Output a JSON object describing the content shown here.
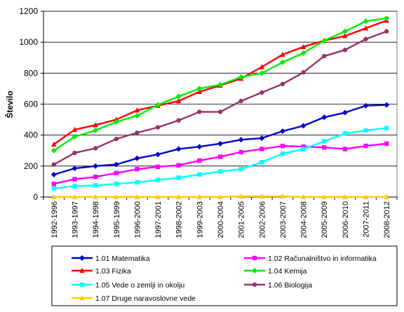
{
  "chart_data": {
    "type": "line",
    "title": "",
    "xlabel": "",
    "ylabel": "Število",
    "ylim": [
      0,
      1200
    ],
    "yticks": [
      0,
      200,
      400,
      600,
      800,
      1000,
      1200
    ],
    "grid": "horizontal",
    "legend_position": "bottom",
    "categories": [
      "1992-1996",
      "1993-1997",
      "1994-1998",
      "1995-1999",
      "1996-2000",
      "1997-2001",
      "1998-2002",
      "1999-2003",
      "2000-2004",
      "2001-2005",
      "2002-2006",
      "2003-2007",
      "2004-2008",
      "2005-2009",
      "2006-2010",
      "2007-2011",
      "2008-2012"
    ],
    "series": [
      {
        "name": "1.01 Matematika",
        "color": "#0000cc",
        "marker": "diamond",
        "values": [
          145,
          185,
          200,
          210,
          250,
          275,
          310,
          325,
          345,
          370,
          380,
          425,
          460,
          515,
          545,
          590,
          595
        ]
      },
      {
        "name": "1.02 Računalništvo in informatika",
        "color": "#ff00ff",
        "marker": "square",
        "values": [
          85,
          115,
          130,
          155,
          180,
          195,
          205,
          235,
          260,
          290,
          310,
          330,
          325,
          320,
          310,
          330,
          345
        ]
      },
      {
        "name": "1.03 Fizika",
        "color": "#ff0000",
        "marker": "triangle",
        "values": [
          340,
          435,
          465,
          500,
          560,
          590,
          620,
          680,
          720,
          765,
          840,
          920,
          970,
          1010,
          1040,
          1090,
          1140
        ]
      },
      {
        "name": "1.04 Kemija",
        "color": "#00ee00",
        "marker": "diamond",
        "values": [
          300,
          390,
          430,
          485,
          525,
          595,
          650,
          700,
          725,
          775,
          800,
          870,
          930,
          1010,
          1070,
          1135,
          1155
        ]
      },
      {
        "name": "1.05 Vede o zemlji in okolju",
        "color": "#00ffff",
        "marker": "square",
        "values": [
          55,
          70,
          75,
          85,
          95,
          110,
          125,
          145,
          165,
          180,
          225,
          280,
          310,
          360,
          410,
          430,
          445
        ]
      },
      {
        "name": "1.06 Biologija",
        "color": "#993366",
        "marker": "circle",
        "values": [
          210,
          285,
          315,
          375,
          415,
          450,
          495,
          550,
          550,
          620,
          675,
          730,
          805,
          910,
          950,
          1020,
          1070
        ]
      },
      {
        "name": "1.07 Druge naravoslovne vede",
        "color": "#ffcc00",
        "marker": "triangle",
        "values": [
          0,
          0,
          0,
          0,
          0,
          0,
          0,
          0,
          0,
          5,
          5,
          5,
          0,
          0,
          0,
          0,
          0
        ]
      }
    ]
  }
}
